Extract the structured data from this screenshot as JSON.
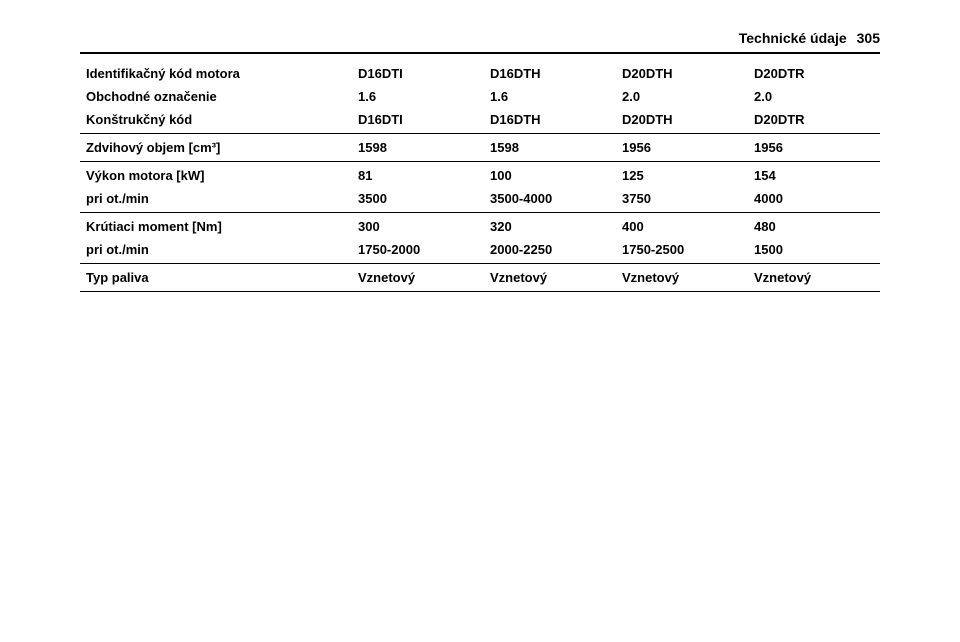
{
  "header": {
    "section_title": "Technické údaje",
    "page_number": "305"
  },
  "table": {
    "colors": {
      "text": "#000000",
      "border": "#000000",
      "background": "#ffffff"
    },
    "font_size_pt": 10,
    "row_labels": [
      "Identifikačný kód motora",
      "Obchodné označenie",
      "Konštrukčný kód",
      "Zdvihový objem [cm³]",
      "Výkon motora [kW]",
      "pri ot./min",
      "Krútiaci moment [Nm]",
      "pri ot./min",
      "Typ paliva"
    ],
    "columns": [
      {
        "code": "D16DTI",
        "trade": "1.6",
        "construction": "D16DTI",
        "displacement": "1598",
        "power": "81",
        "power_rpm": "3500",
        "torque": "300",
        "torque_rpm": "1750-2000",
        "fuel": "Vznetový"
      },
      {
        "code": "D16DTH",
        "trade": "1.6",
        "construction": "D16DTH",
        "displacement": "1598",
        "power": "100",
        "power_rpm": "3500-4000",
        "torque": "320",
        "torque_rpm": "2000-2250",
        "fuel": "Vznetový"
      },
      {
        "code": "D20DTH",
        "trade": "2.0",
        "construction": "D20DTH",
        "displacement": "1956",
        "power": "125",
        "power_rpm": "3750",
        "torque": "400",
        "torque_rpm": "1750-2500",
        "fuel": "Vznetový"
      },
      {
        "code": "D20DTR",
        "trade": "2.0",
        "construction": "D20DTR",
        "displacement": "1956",
        "power": "154",
        "power_rpm": "4000",
        "torque": "480",
        "torque_rpm": "1500",
        "fuel": "Vznetový"
      }
    ],
    "separators_after_row": [
      2,
      3,
      5,
      7,
      8
    ]
  }
}
